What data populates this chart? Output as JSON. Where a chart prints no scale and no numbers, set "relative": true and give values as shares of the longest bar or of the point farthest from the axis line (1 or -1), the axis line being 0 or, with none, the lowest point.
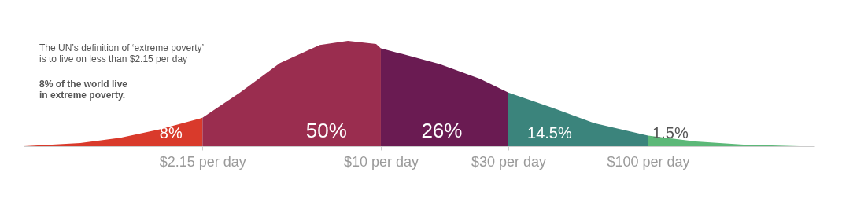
{
  "chart_data": {
    "type": "area",
    "relative": true,
    "log": "x",
    "xlim": [
      0.46,
      420
    ],
    "xticks": [
      {
        "value": 2.15,
        "label": "$2.15 per day"
      },
      {
        "value": 10,
        "label": "$10 per day"
      },
      {
        "value": 30,
        "label": "$30 per day"
      },
      {
        "value": 100,
        "label": "$100 per day"
      }
    ],
    "grid": false,
    "legend": false,
    "series": [
      {
        "name": "8%",
        "color": "#d93a2b",
        "x": [
          0.46,
          0.75,
          1.06,
          1.49,
          2.15
        ],
        "values": [
          0,
          0.03,
          0.08,
          0.16,
          0.27
        ]
      },
      {
        "name": "50%",
        "color": "#9a2d4f",
        "x": [
          2.15,
          2.97,
          4.19,
          5.91,
          7.53,
          9.6,
          10
        ],
        "values": [
          0.27,
          0.51,
          0.79,
          0.96,
          1,
          0.97,
          0.93
        ]
      },
      {
        "name": "26%",
        "color": "#6a1b52",
        "x": [
          10,
          16.6,
          23.5,
          30
        ],
        "values": [
          0.93,
          0.78,
          0.64,
          0.51
        ]
      },
      {
        "name": "14.5%",
        "color": "#3b847c",
        "x": [
          30,
          44.4,
          62.7,
          100
        ],
        "values": [
          0.51,
          0.36,
          0.22,
          0.1
        ]
      },
      {
        "name": "1.5%",
        "color": "#5cb878",
        "x": [
          100,
          151,
          228,
          370
        ],
        "values": [
          0.1,
          0.045,
          0.015,
          0
        ]
      }
    ],
    "annotations": [
      "The UN’s definition of ‘extreme poverty’\nis to live on less than $2.15 per day",
      "8% of the world live\nin extreme poverty."
    ]
  }
}
